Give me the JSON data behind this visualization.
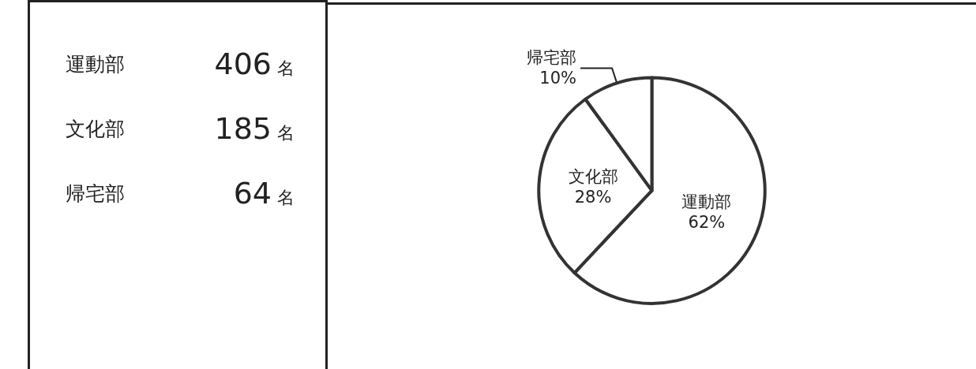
{
  "chart_data": [
    {
      "type": "other",
      "categories": [
        "運動部",
        "文化部",
        "帰宅部"
      ],
      "values": [
        406,
        185,
        64
      ],
      "value_labels": [
        "406 名",
        "185 名",
        "64 名"
      ]
    },
    {
      "type": "pie",
      "categories": [
        "運動部",
        "文化部",
        "帰宅部"
      ],
      "values": [
        62,
        28,
        10
      ],
      "colors": [
        "#ffffff",
        "#ffffff",
        "#ffffff"
      ],
      "value_labels": [
        "62%",
        "28%",
        "10%"
      ]
    }
  ]
}
